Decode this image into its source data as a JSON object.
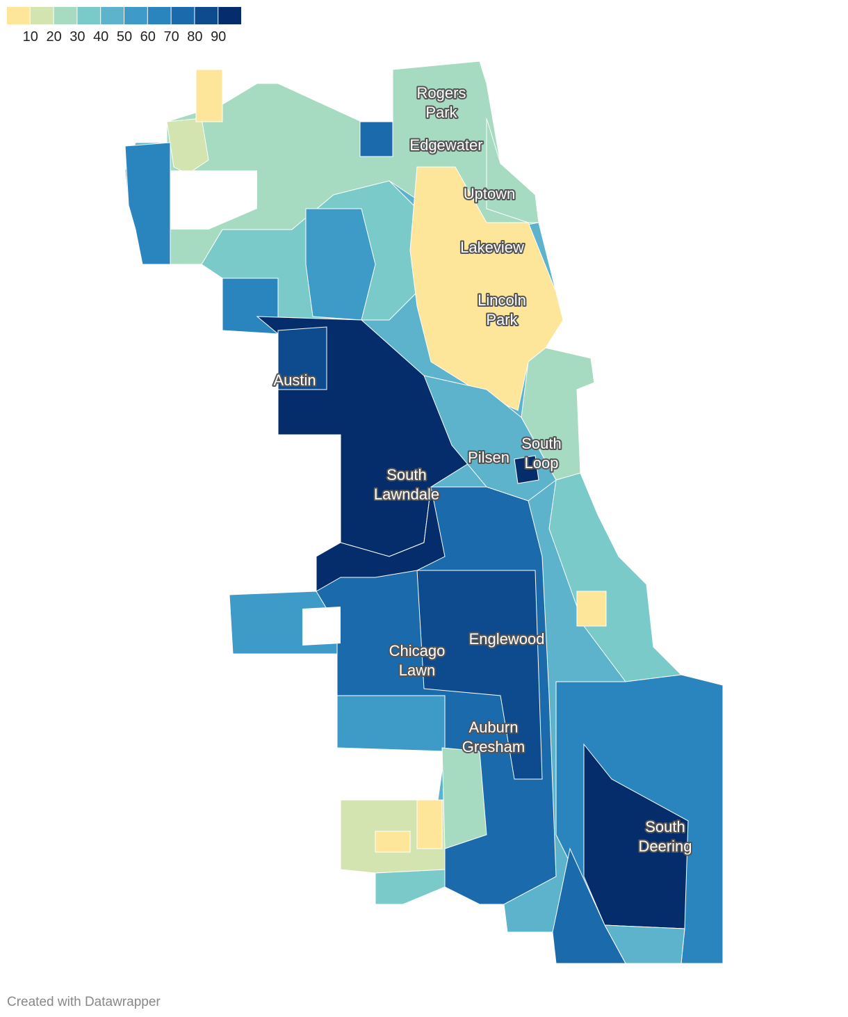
{
  "legend": {
    "colors": [
      "#fde59a",
      "#d3e4b0",
      "#a6dbc1",
      "#79cac8",
      "#5cb3cb",
      "#3e9bc8",
      "#2a85bf",
      "#1a6aac",
      "#0d4a8e",
      "#062d6b"
    ],
    "labels": [
      10,
      20,
      30,
      40,
      50,
      60,
      70,
      80,
      90
    ]
  },
  "places": [
    {
      "lines": [
        "Rogers",
        "Park"
      ]
    },
    {
      "lines": [
        "Edgewater"
      ]
    },
    {
      "lines": [
        "Uptown"
      ]
    },
    {
      "lines": [
        "Lakeview"
      ]
    },
    {
      "lines": [
        "Lincoln",
        "Park"
      ]
    },
    {
      "lines": [
        "Austin"
      ]
    },
    {
      "lines": [
        "South",
        "Loop"
      ]
    },
    {
      "lines": [
        "Pilsen"
      ]
    },
    {
      "lines": [
        "South",
        "Lawndale"
      ]
    },
    {
      "lines": [
        "Chicago",
        "Lawn"
      ]
    },
    {
      "lines": [
        "Englewood"
      ]
    },
    {
      "lines": [
        "Auburn",
        "Gresham"
      ]
    },
    {
      "lines": [
        "South",
        "Deering"
      ]
    }
  ],
  "footer": "Created with Datawrapper"
}
